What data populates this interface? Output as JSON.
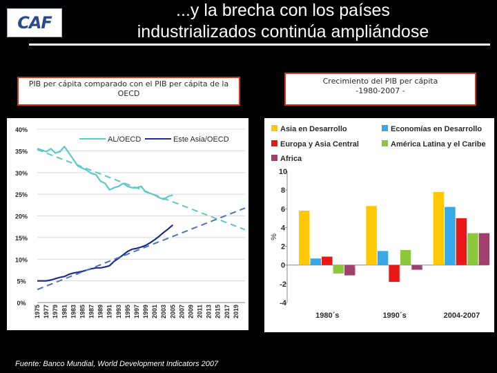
{
  "logo": {
    "text": "CAF"
  },
  "slide": {
    "title_line1": "...y la brecha con los países",
    "title_line2": "industrializados continúa ampliándose"
  },
  "left_box": {
    "text": "PIB per cápita comparado con el PIB per cápita de la OECD"
  },
  "right_box": {
    "line1": "Crecimiento del PIB per cápita",
    "line2": "-1980-2007 -"
  },
  "source": "Fuente: Banco Mundial, World Development Indicators 2007",
  "colors": {
    "al_oecd": "#5cc8c8",
    "este_asia_oecd": "#1c2c8c",
    "asia": "#ffc800",
    "economias": "#38a8e8",
    "europa": "#e81818",
    "america_latina": "#8cc83c",
    "africa": "#a0406c"
  },
  "chart_data": [
    {
      "type": "line",
      "ylim": [
        0,
        40
      ],
      "yticks": [
        "0%",
        "5%",
        "10%",
        "15%",
        "20%",
        "25%",
        "30%",
        "35%",
        "40%"
      ],
      "xticks": [
        "1975",
        "1977",
        "1979",
        "1981",
        "1983",
        "1985",
        "1987",
        "1989",
        "1991",
        "1993",
        "1995",
        "1997",
        "1999",
        "2001",
        "2003",
        "2005",
        "2007",
        "2009",
        "2011",
        "2013",
        "2015",
        "2017",
        "2019"
      ],
      "grid": "horizontal",
      "legend": "top",
      "series": [
        {
          "name": "AL/OECD",
          "x": [
            1975,
            1976,
            1977,
            1978,
            1979,
            1980,
            1981,
            1982,
            1983,
            1984,
            1985,
            1986,
            1987,
            1988,
            1989,
            1990,
            1991,
            1992,
            1993,
            1994,
            1995,
            1996,
            1997,
            1998,
            1999,
            2000,
            2001,
            2002,
            2003,
            2004,
            2005
          ],
          "values": [
            35.5,
            35.2,
            34.8,
            35.5,
            34.5,
            34.8,
            36.0,
            34.5,
            33.0,
            31.5,
            31.0,
            30.5,
            29.8,
            29.5,
            28.0,
            27.5,
            26.0,
            26.5,
            26.8,
            27.5,
            26.8,
            26.5,
            26.5,
            26.8,
            25.5,
            25.2,
            24.8,
            24.2,
            23.8,
            24.5,
            24.8
          ]
        },
        {
          "name": "Este Asia/OECD",
          "x": [
            1975,
            1976,
            1977,
            1978,
            1979,
            1980,
            1981,
            1982,
            1983,
            1984,
            1985,
            1986,
            1987,
            1988,
            1989,
            1990,
            1991,
            1992,
            1993,
            1994,
            1995,
            1996,
            1997,
            1998,
            1999,
            2000,
            2001,
            2002,
            2003,
            2004,
            2005
          ],
          "values": [
            5.0,
            5.0,
            5.0,
            5.2,
            5.5,
            5.8,
            6.0,
            6.5,
            6.8,
            7.0,
            7.2,
            7.5,
            7.8,
            8.0,
            8.0,
            8.2,
            8.5,
            9.5,
            10.2,
            11.0,
            11.8,
            12.3,
            12.5,
            12.8,
            13.2,
            13.8,
            14.5,
            15.3,
            16.2,
            17.0,
            17.9
          ]
        },
        {
          "name": "",
          "x": [
            1975,
            2021
          ],
          "values": [
            35.3,
            16.8
          ]
        },
        {
          "name": "",
          "x": [
            1975,
            2021
          ],
          "values": [
            3.0,
            21.8
          ]
        }
      ]
    },
    {
      "type": "bar",
      "ylabel": "%",
      "ylim": [
        -4,
        10
      ],
      "yticks": [
        "-4",
        "-2",
        "0",
        "2",
        "4",
        "6",
        "8",
        "10"
      ],
      "categories": [
        "1980´s",
        "1990´s",
        "2004-2007"
      ],
      "legend": "top",
      "series": [
        {
          "name": "Asia en Desarrollo",
          "values": [
            5.8,
            6.3,
            7.8
          ]
        },
        {
          "name": "Economías en Desarrollo",
          "values": [
            0.7,
            1.5,
            6.2
          ]
        },
        {
          "name": "Europa y Asia Central",
          "values": [
            0.9,
            -1.8,
            5.0
          ]
        },
        {
          "name": "América Latina y el Caribe",
          "values": [
            -0.9,
            1.6,
            3.4
          ]
        },
        {
          "name": "Africa",
          "values": [
            -1.1,
            -0.5,
            3.4
          ]
        }
      ]
    }
  ]
}
